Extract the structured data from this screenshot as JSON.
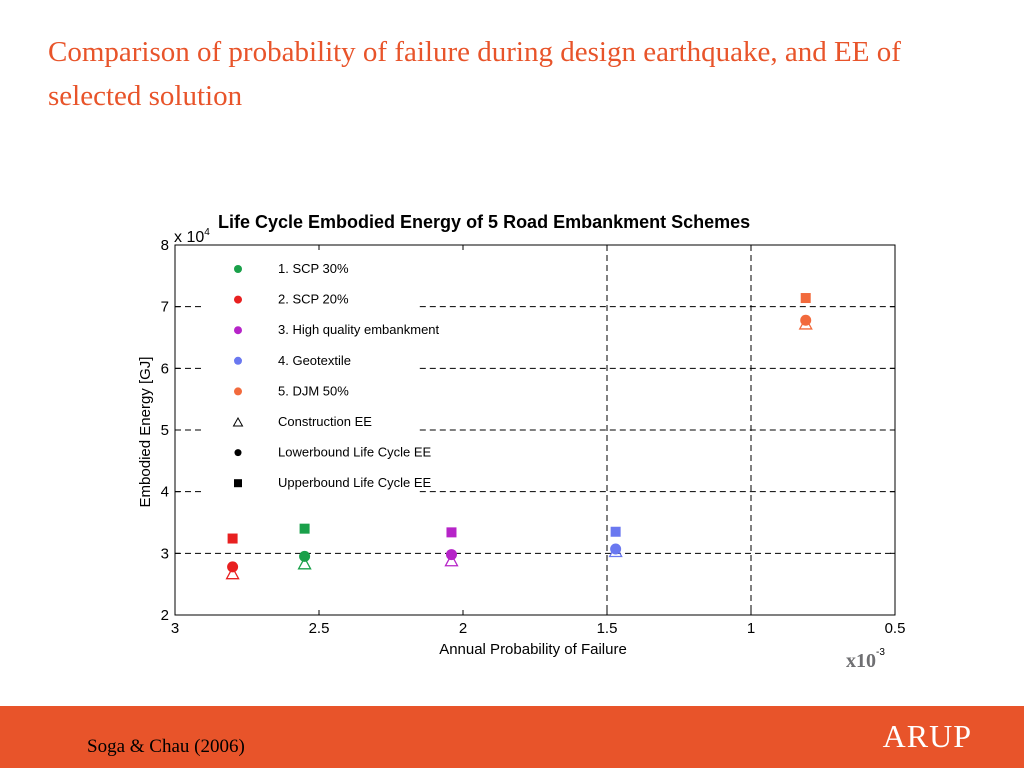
{
  "slide": {
    "title": "Comparison of probability of failure during design earthquake, and EE of selected solution",
    "citation": "Soga & Chau (2006)",
    "logo": "ARUP",
    "x_multiplier_base": "x10",
    "x_multiplier_exp": "-3",
    "accent_color": "#e8542a"
  },
  "chart_data": {
    "type": "scatter",
    "title": "Life Cycle Embodied Energy of 5 Road Embankment Schemes",
    "xlabel": "Annual Probability of Failure",
    "ylabel": "Embodied Energy [GJ]",
    "y_multiplier": "x 10",
    "y_multiplier_exp": "4",
    "xlim": [
      3,
      0.5
    ],
    "x_reversed": true,
    "ylim": [
      2,
      8
    ],
    "x_ticks": [
      3,
      2.5,
      2,
      1.5,
      1,
      0.5
    ],
    "x_tick_labels": [
      "3",
      "2.5",
      "2",
      "1.5",
      "1",
      "0.5"
    ],
    "y_ticks": [
      2,
      3,
      4,
      5,
      6,
      7,
      8
    ],
    "y_tick_labels": [
      "2",
      "3",
      "4",
      "5",
      "6",
      "7",
      "8"
    ],
    "grid": "dashed reference lines",
    "legend_position": "top-left",
    "series": [
      {
        "name": "1. SCP 30%",
        "color": "#1aa04a",
        "x": 2.55,
        "construction": 2.83,
        "lower": 2.95,
        "upper": 3.4
      },
      {
        "name": "2. SCP 20%",
        "color": "#e82020",
        "x": 2.8,
        "construction": 2.67,
        "lower": 2.78,
        "upper": 3.24
      },
      {
        "name": "3. High quality embankment",
        "color": "#b624c8",
        "x": 2.04,
        "construction": 2.88,
        "lower": 2.98,
        "upper": 3.34
      },
      {
        "name": "4. Geotextile",
        "color": "#6a78f0",
        "x": 1.47,
        "construction": 3.03,
        "lower": 3.07,
        "upper": 3.35
      },
      {
        "name": "5. DJM 50%",
        "color": "#f26a3c",
        "x": 0.81,
        "construction": 6.72,
        "lower": 6.78,
        "upper": 7.14
      }
    ],
    "marker_legend": [
      {
        "name": "Construction EE",
        "marker": "triangle"
      },
      {
        "name": "Lowerbound Life Cycle EE",
        "marker": "circle"
      },
      {
        "name": "Upperbound Life Cycle EE",
        "marker": "square"
      }
    ]
  }
}
